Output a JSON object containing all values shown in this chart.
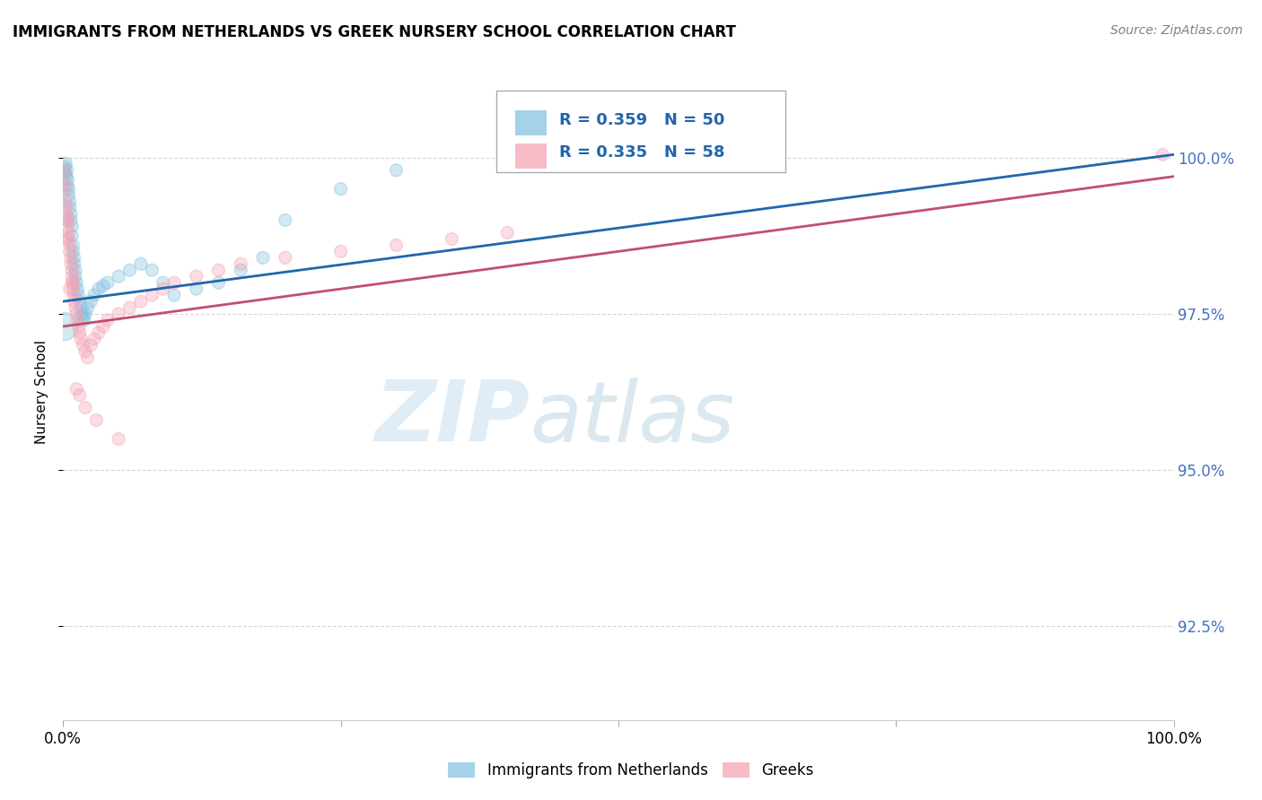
{
  "title": "IMMIGRANTS FROM NETHERLANDS VS GREEK NURSERY SCHOOL CORRELATION CHART",
  "source": "Source: ZipAtlas.com",
  "ylabel": "Nursery School",
  "y_ticks": [
    92.5,
    95.0,
    97.5,
    100.0
  ],
  "y_tick_labels": [
    "92.5%",
    "95.0%",
    "97.5%",
    "100.0%"
  ],
  "x_range": [
    0.0,
    1.0
  ],
  "y_range": [
    91.0,
    101.5
  ],
  "blue_R": 0.359,
  "blue_N": 50,
  "pink_R": 0.335,
  "pink_N": 58,
  "legend_label_blue": "Immigrants from Netherlands",
  "legend_label_pink": "Greeks",
  "blue_color": "#7fbfdf",
  "pink_color": "#f4a0b0",
  "blue_line_color": "#2166ac",
  "pink_line_color": "#c0506a",
  "blue_points_x": [
    0.001,
    0.002,
    0.002,
    0.003,
    0.003,
    0.004,
    0.004,
    0.005,
    0.005,
    0.006,
    0.006,
    0.007,
    0.007,
    0.008,
    0.008,
    0.009,
    0.009,
    0.01,
    0.01,
    0.011,
    0.011,
    0.012,
    0.013,
    0.014,
    0.015,
    0.016,
    0.017,
    0.018,
    0.019,
    0.02,
    0.022,
    0.025,
    0.028,
    0.032,
    0.036,
    0.04,
    0.05,
    0.06,
    0.07,
    0.08,
    0.09,
    0.1,
    0.12,
    0.14,
    0.16,
    0.18,
    0.2,
    0.25,
    0.3,
    0.001
  ],
  "blue_points_y": [
    99.85,
    99.9,
    99.75,
    99.8,
    99.7,
    99.65,
    99.55,
    99.5,
    99.4,
    99.3,
    99.2,
    99.1,
    99.0,
    98.9,
    98.75,
    98.6,
    98.5,
    98.4,
    98.3,
    98.2,
    98.1,
    98.0,
    97.9,
    97.8,
    97.7,
    97.6,
    97.5,
    97.45,
    97.4,
    97.5,
    97.6,
    97.7,
    97.8,
    97.9,
    97.95,
    98.0,
    98.1,
    98.2,
    98.3,
    98.2,
    98.0,
    97.8,
    97.9,
    98.0,
    98.2,
    98.4,
    99.0,
    99.5,
    99.8,
    97.3
  ],
  "blue_sizes": [
    120,
    120,
    100,
    120,
    100,
    100,
    100,
    100,
    100,
    100,
    100,
    100,
    100,
    100,
    100,
    100,
    100,
    100,
    100,
    100,
    100,
    100,
    100,
    100,
    100,
    100,
    100,
    100,
    100,
    100,
    100,
    100,
    100,
    100,
    100,
    100,
    100,
    100,
    100,
    100,
    100,
    100,
    100,
    100,
    100,
    100,
    100,
    100,
    100,
    500
  ],
  "pink_points_x": [
    0.001,
    0.001,
    0.002,
    0.002,
    0.003,
    0.003,
    0.004,
    0.004,
    0.005,
    0.005,
    0.006,
    0.006,
    0.007,
    0.007,
    0.008,
    0.008,
    0.009,
    0.009,
    0.01,
    0.01,
    0.011,
    0.012,
    0.013,
    0.014,
    0.015,
    0.016,
    0.018,
    0.02,
    0.022,
    0.025,
    0.028,
    0.032,
    0.036,
    0.04,
    0.05,
    0.06,
    0.07,
    0.08,
    0.09,
    0.1,
    0.12,
    0.14,
    0.16,
    0.2,
    0.25,
    0.3,
    0.35,
    0.4,
    0.05,
    0.99,
    0.012,
    0.015,
    0.02,
    0.03,
    0.006,
    0.008,
    0.004,
    0.003
  ],
  "pink_points_y": [
    99.8,
    99.6,
    99.5,
    99.3,
    99.2,
    99.1,
    99.0,
    98.9,
    98.8,
    98.7,
    98.6,
    98.5,
    98.4,
    98.3,
    98.2,
    98.1,
    98.0,
    97.9,
    97.8,
    97.7,
    97.6,
    97.5,
    97.4,
    97.3,
    97.2,
    97.1,
    97.0,
    96.9,
    96.8,
    97.0,
    97.1,
    97.2,
    97.3,
    97.4,
    97.5,
    97.6,
    97.7,
    97.8,
    97.9,
    98.0,
    98.1,
    98.2,
    98.3,
    98.4,
    98.5,
    98.6,
    98.7,
    98.8,
    95.5,
    100.05,
    96.3,
    96.2,
    96.0,
    95.8,
    97.9,
    98.0,
    99.0,
    98.7
  ],
  "pink_sizes": [
    100,
    100,
    100,
    100,
    100,
    100,
    100,
    100,
    100,
    100,
    100,
    100,
    100,
    100,
    100,
    100,
    100,
    100,
    100,
    100,
    100,
    100,
    100,
    100,
    100,
    100,
    100,
    100,
    100,
    100,
    100,
    100,
    100,
    100,
    100,
    100,
    100,
    100,
    100,
    100,
    100,
    100,
    100,
    100,
    100,
    100,
    100,
    100,
    100,
    100,
    100,
    100,
    100,
    100,
    100,
    100,
    100,
    100
  ],
  "blue_line_x0": 0.0,
  "blue_line_y0": 97.7,
  "blue_line_x1": 1.0,
  "blue_line_y1": 100.05,
  "pink_line_x0": 0.0,
  "pink_line_y0": 97.3,
  "pink_line_x1": 1.0,
  "pink_line_y1": 99.7
}
